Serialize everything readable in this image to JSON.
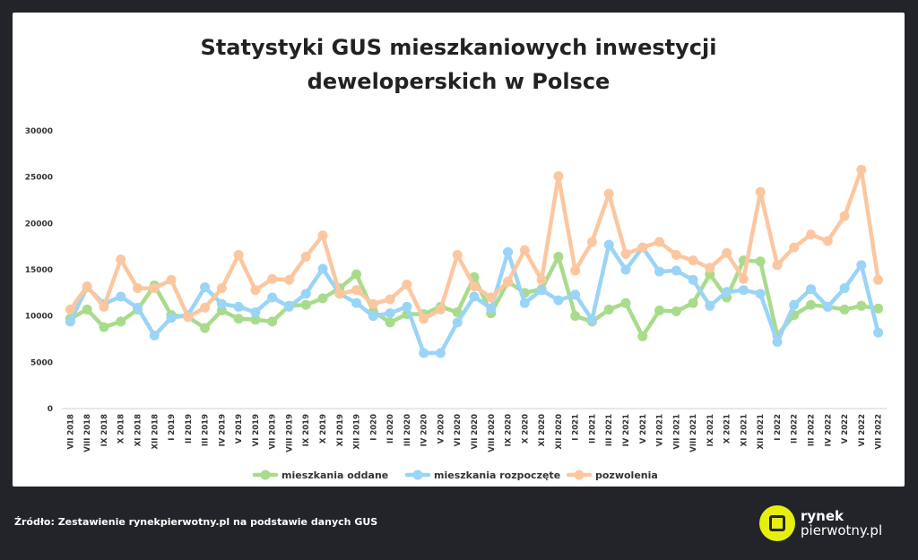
{
  "chart_data": {
    "type": "line",
    "title_lines": [
      "Statystyki GUS mieszkaniowych inwestycji",
      "deweloperskich w Polsce"
    ],
    "xlabel": "",
    "ylabel": "",
    "ylim": [
      0,
      30000
    ],
    "yticks": [
      "0",
      "5000",
      "10000",
      "15000",
      "20000",
      "25000",
      "30000"
    ],
    "grid": false,
    "legend_position": "bottom",
    "categories": [
      "VII 2018",
      "VIII 2018",
      "IX 2018",
      "X 2018",
      "XI 2018",
      "XII 2018",
      "I 2019",
      "II 2019",
      "III 2019",
      "IV 2019",
      "V 2019",
      "VI 2019",
      "VII 2019",
      "VIII 2019",
      "IX 2019",
      "X 2019",
      "XI 2019",
      "XII 2019",
      "I 2020",
      "II 2020",
      "III 2020",
      "IV 2020",
      "V 2020",
      "VI 2020",
      "VII 2020",
      "VIII 2020",
      "IX 2020",
      "X 2020",
      "XI 2020",
      "XII 2020",
      "I 2021",
      "II 2021",
      "III 2021",
      "IV 2021",
      "V 2021",
      "VI 2021",
      "VII 2021",
      "VIII 2021",
      "IX 2021",
      "X 2021",
      "XI 2021",
      "XII 2021",
      "I 2022",
      "II 2022",
      "III 2022",
      "IV 2022",
      "V 2022",
      "VI 2022",
      "VII 2022"
    ],
    "series": [
      {
        "name": "mieszkania oddane",
        "color": "#a9db8c",
        "values": [
          9700,
          10700,
          8800,
          9400,
          10700,
          13300,
          10100,
          9900,
          8700,
          10600,
          9700,
          9600,
          9400,
          11100,
          11200,
          11900,
          13000,
          14500,
          10500,
          9300,
          10200,
          10200,
          11000,
          10400,
          14200,
          10300,
          13700,
          12500,
          12900,
          16400,
          10000,
          9400,
          10700,
          11400,
          7800,
          10600,
          10500,
          11400,
          14500,
          12000,
          16000,
          15900,
          7900,
          10100,
          11200,
          11000,
          10700,
          11100,
          10800
        ]
      },
      {
        "name": "mieszkania rozpoczęte",
        "color": "#9ad4f7",
        "values": [
          9400,
          13100,
          11300,
          12100,
          10900,
          7900,
          9800,
          10100,
          13100,
          11300,
          11000,
          10400,
          12000,
          11000,
          12400,
          15100,
          12400,
          11400,
          10000,
          10300,
          11000,
          6000,
          6000,
          9300,
          12100,
          10800,
          16900,
          11400,
          12800,
          11700,
          12300,
          9600,
          17700,
          15000,
          17400,
          14800,
          14900,
          13900,
          11100,
          12600,
          12800,
          12400,
          7200,
          11200,
          12900,
          11000,
          13000,
          15500,
          8200
        ]
      },
      {
        "name": "pozwolenia",
        "color": "#fcc79f",
        "values": [
          10700,
          13200,
          11000,
          16100,
          13000,
          13000,
          13900,
          9900,
          10900,
          13000,
          16600,
          12800,
          14000,
          13900,
          16400,
          18700,
          12400,
          12800,
          11300,
          11800,
          13400,
          9700,
          10700,
          16600,
          13200,
          12000,
          13700,
          17100,
          13900,
          25100,
          14900,
          18000,
          23200,
          16700,
          17400,
          18000,
          16600,
          16000,
          15200,
          16800,
          14000,
          23400,
          15500,
          17400,
          18800,
          18100,
          20800,
          25800,
          13900
        ]
      }
    ]
  },
  "footer": {
    "source": "Źródło: Zestawienie rynekpierwotny.pl na podstawie danych GUS",
    "logo_line1": "rynek",
    "logo_line2": "pierwotny.pl"
  }
}
